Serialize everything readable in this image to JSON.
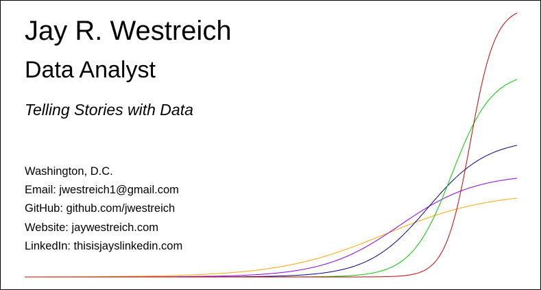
{
  "card": {
    "name": "Jay R. Westreich",
    "role": "Data Analyst",
    "tagline": "Telling Stories with Data",
    "contact": [
      {
        "label": "Washington, D.C."
      },
      {
        "label": "Email: jwestreich1@gmail.com"
      },
      {
        "label": "GitHub: github.com/jwestreich"
      },
      {
        "label": "Website: jaywestreich.com"
      },
      {
        "label": "LinkedIn: thisisjayslinkedin.com"
      }
    ]
  },
  "decoration": {
    "curve_colors": [
      "#ffa500",
      "#8b00e0",
      "#00008b",
      "#00c800",
      "#c80000"
    ]
  }
}
